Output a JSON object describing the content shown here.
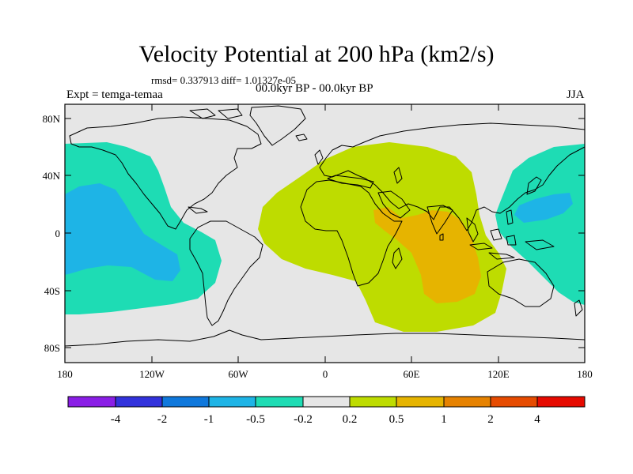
{
  "title": "Velocity Potential at 200 hPa (km2/s)",
  "rmsd_line": "rmsd= 0.337913 diff= 1.01327e-05",
  "expt_line": "Expt = temga-temaa",
  "period_line": "00.0kyr BP - 00.0kyr BP",
  "season": "JJA",
  "axes": {
    "lat_ticks": [
      "80N",
      "40N",
      "0",
      "40S",
      "80S"
    ],
    "lon_ticks": [
      "180",
      "120W",
      "60W",
      "0",
      "60E",
      "120E",
      "180"
    ]
  },
  "colorbar": {
    "labels": [
      "-4",
      "-2",
      "-1",
      "-0.5",
      "-0.2",
      "0.2",
      "0.5",
      "1",
      "2",
      "4"
    ],
    "colors": [
      "#8a1ee6",
      "#3232dc",
      "#0f78dc",
      "#1eb4e6",
      "#1edcb4",
      "#e6e6e6",
      "#bedc00",
      "#e6b400",
      "#e68200",
      "#e64b00",
      "#e60a00"
    ]
  },
  "regions": [
    {
      "name": "pacific-negative-outer",
      "level": "-0.5 to -0.2",
      "color": "#1edcb4"
    },
    {
      "name": "pacific-negative-inner",
      "level": "-1 to -0.5",
      "color": "#1eb4e6"
    },
    {
      "name": "west-pacific-negative-outer",
      "level": "-0.5 to -0.2",
      "color": "#1edcb4"
    },
    {
      "name": "west-pacific-negative-inner",
      "level": "-1 to -0.5",
      "color": "#1eb4e6"
    },
    {
      "name": "africa-indian-positive",
      "level": "0.2 to 0.5",
      "color": "#bedc00"
    },
    {
      "name": "indian-ocean-max",
      "level": "0.5 to 1",
      "color": "#e6b400"
    }
  ]
}
